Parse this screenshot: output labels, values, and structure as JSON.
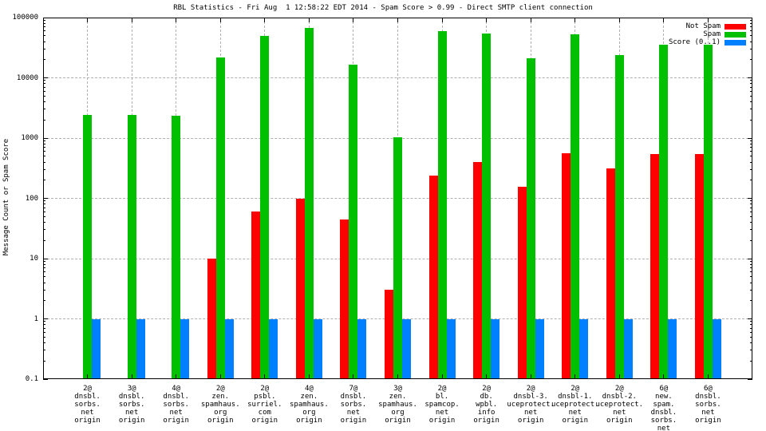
{
  "chart_data": {
    "type": "bar",
    "title": "RBL Statistics - Fri Aug  1 12:58:22 EDT 2014 - Spam Score > 0.99 - Direct SMTP client connection",
    "ylabel": "Message Count or Spam Score",
    "yscale": "log",
    "ylim": [
      0.1,
      100000
    ],
    "ytick_labels": [
      "100000",
      "10000",
      "1000",
      "100",
      "10",
      "1",
      "0.1"
    ],
    "grid": true,
    "legend_position": "top-right",
    "categories": [
      [
        "2@",
        "dnsbl.",
        "sorbs.",
        "net",
        "origin"
      ],
      [
        "3@",
        "dnsbl.",
        "sorbs.",
        "net",
        "origin"
      ],
      [
        "4@",
        "dnsbl.",
        "sorbs.",
        "net",
        "origin"
      ],
      [
        "2@",
        "zen.",
        "spamhaus.",
        "org",
        "origin"
      ],
      [
        "2@",
        "psbl.",
        "surriel.",
        "com",
        "origin"
      ],
      [
        "4@",
        "zen.",
        "spamhaus.",
        "org",
        "origin"
      ],
      [
        "7@",
        "dnsbl.",
        "sorbs.",
        "net",
        "origin"
      ],
      [
        "3@",
        "zen.",
        "spamhaus.",
        "org",
        "origin"
      ],
      [
        "2@",
        "bl.",
        "spamcop.",
        "net",
        "origin"
      ],
      [
        "2@",
        "db.",
        "wpbl.",
        "info",
        "origin"
      ],
      [
        "2@",
        "dnsbl-3.",
        "uceprotect.",
        "net",
        "origin"
      ],
      [
        "2@",
        "dnsbl-1.",
        "uceprotect.",
        "net",
        "origin"
      ],
      [
        "2@",
        "dnsbl-2.",
        "uceprotect.",
        "net",
        "origin"
      ],
      [
        "6@",
        "new.",
        "spam.",
        "dnsbl.",
        "sorbs.",
        "net",
        "origin"
      ],
      [
        "6@",
        "dnsbl.",
        "sorbs.",
        "net",
        "origin"
      ]
    ],
    "series": [
      {
        "name": "Not Spam",
        "color": "#ff0000",
        "values": [
          0,
          0,
          0,
          10,
          60,
          97,
          44,
          3,
          240,
          400,
          155,
          560,
          310,
          545,
          550
        ]
      },
      {
        "name": "Spam",
        "color": "#00c000",
        "values": [
          2400,
          2400,
          2350,
          22000,
          50000,
          68000,
          16500,
          1030,
          59000,
          55000,
          21000,
          52000,
          23500,
          35000,
          35000
        ]
      },
      {
        "name": "Score (0..1)",
        "color": "#0080ff",
        "values": [
          1,
          1,
          1,
          1,
          1,
          1,
          1,
          1,
          1,
          1,
          1,
          1,
          1,
          1,
          1
        ]
      }
    ]
  },
  "colors": {
    "grid": "#b0b0b0",
    "axis": "#000000",
    "background": "#ffffff"
  }
}
